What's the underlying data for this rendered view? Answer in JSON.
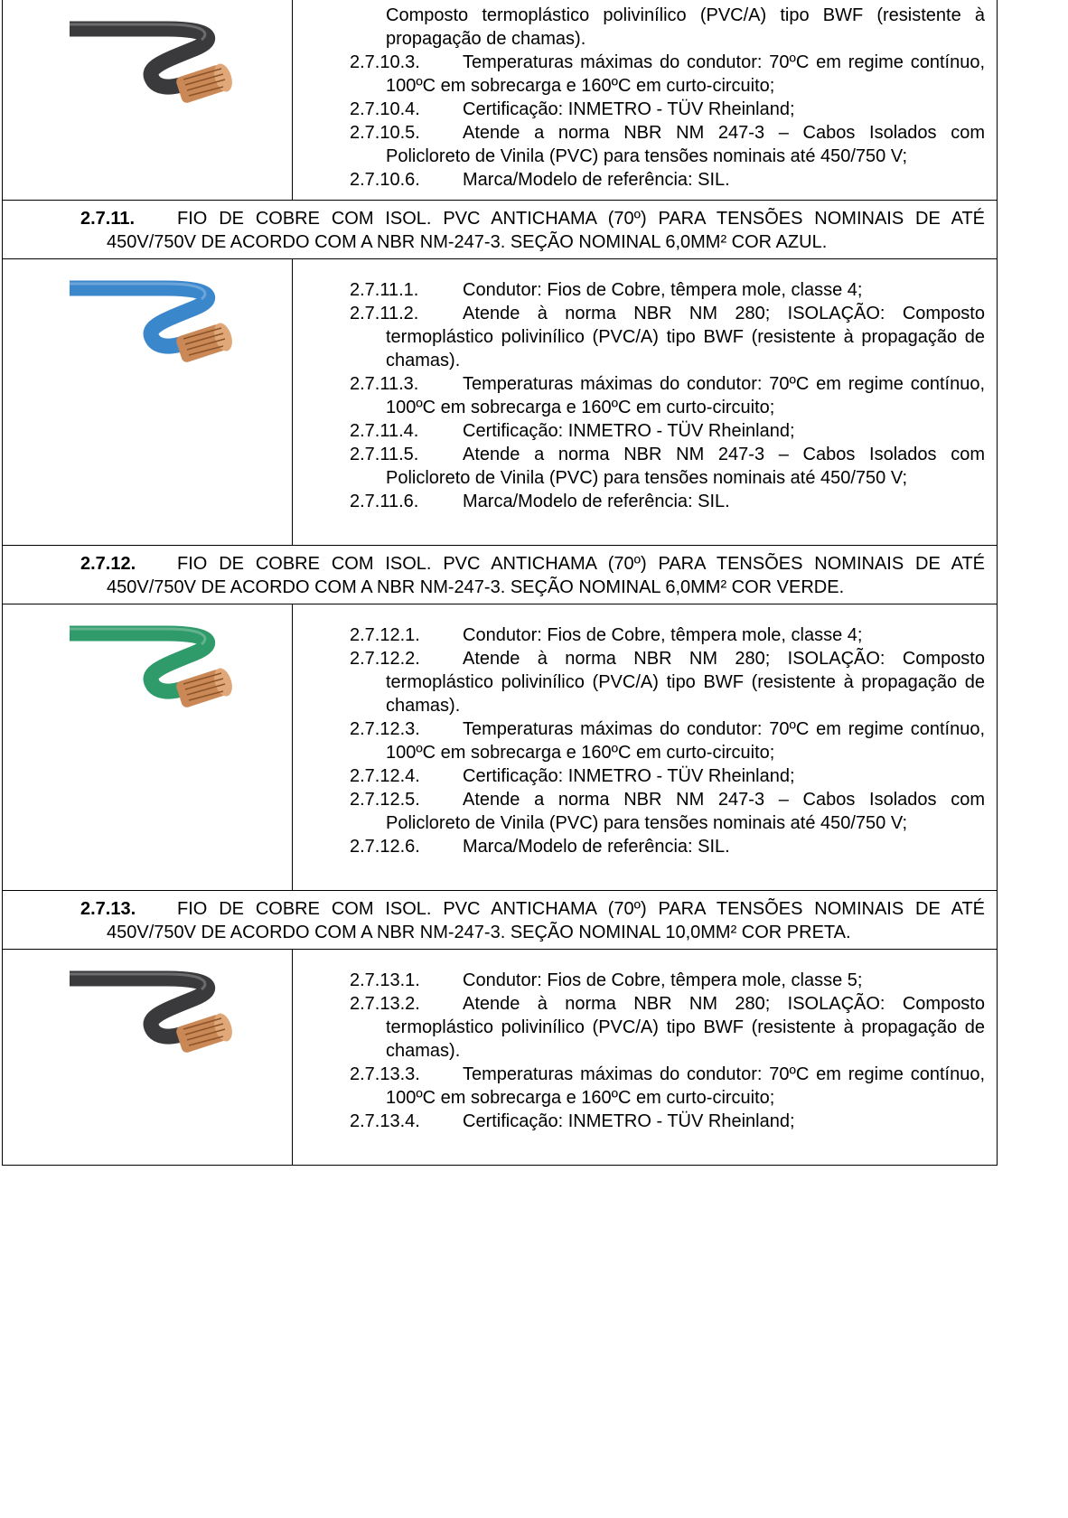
{
  "first_cell": {
    "continued_text": "Composto termoplástico polivinílico (PVC/A) tipo BWF (resistente à propagação de chamas).",
    "items": [
      {
        "number": "2.7.10.3.",
        "text": "Temperaturas máximas do condutor: 70ºC em regime contínuo, 100ºC em sobrecarga e 160ºC em curto-circuito;"
      },
      {
        "number": "2.7.10.4.",
        "text": "Certificação: INMETRO - TÜV Rheinland;"
      },
      {
        "number": "2.7.10.5.",
        "text": "Atende a norma NBR NM 247-3 – Cabos Isolados com Policloreto de Vinila (PVC) para tensões nominais até 450/750 V;"
      },
      {
        "number": "2.7.10.6.",
        "text": "Marca/Modelo de referência: SIL."
      }
    ]
  },
  "sections": [
    {
      "number": "2.7.11.",
      "title": "FIO DE COBRE COM ISOL. PVC ANTICHAMA (70º) PARA TENSÕES NOMINAIS DE ATÉ 450V/750V DE ACORDO COM A NBR NM-247-3. SEÇÃO NOMINAL 6,0MM² COR AZUL.",
      "items": [
        {
          "number": "2.7.11.1.",
          "text": "Condutor: Fios de Cobre, têmpera mole, classe 4;"
        },
        {
          "number": "2.7.11.2.",
          "text": "Atende à norma NBR NM 280; ISOLAÇÃO: Composto termoplástico polivinílico (PVC/A) tipo BWF (resistente à propagação de chamas)."
        },
        {
          "number": "2.7.11.3.",
          "text": "Temperaturas máximas do condutor: 70ºC em regime contínuo, 100ºC em sobrecarga e 160ºC em curto-circuito;"
        },
        {
          "number": "2.7.11.4.",
          "text": "Certificação: INMETRO - TÜV Rheinland;"
        },
        {
          "number": "2.7.11.5.",
          "text": "Atende a norma NBR NM 247-3 – Cabos Isolados com Policloreto de Vinila (PVC) para tensões nominais até 450/750 V;"
        },
        {
          "number": "2.7.11.6.",
          "text": "Marca/Modelo de referência: SIL."
        }
      ]
    },
    {
      "number": "2.7.12.",
      "title": "FIO DE COBRE COM ISOL. PVC ANTICHAMA (70º) PARA TENSÕES NOMINAIS DE ATÉ 450V/750V DE ACORDO COM A NBR NM-247-3. SEÇÃO NOMINAL 6,0MM² COR VERDE.",
      "items": [
        {
          "number": "2.7.12.1.",
          "text": "Condutor: Fios de Cobre, têmpera mole, classe 4;"
        },
        {
          "number": "2.7.12.2.",
          "text": "Atende à norma NBR NM 280; ISOLAÇÃO: Composto termoplástico polivinílico (PVC/A) tipo BWF (resistente à propagação de chamas)."
        },
        {
          "number": "2.7.12.3.",
          "text": "Temperaturas máximas do condutor: 70ºC em regime contínuo, 100ºC em sobrecarga e 160ºC em curto-circuito;"
        },
        {
          "number": "2.7.12.4.",
          "text": "Certificação: INMETRO - TÜV Rheinland;"
        },
        {
          "number": "2.7.12.5.",
          "text": "Atende a norma NBR NM 247-3 – Cabos Isolados com Policloreto de Vinila (PVC) para tensões nominais até 450/750 V;"
        },
        {
          "number": "2.7.12.6.",
          "text": "Marca/Modelo de referência: SIL."
        }
      ]
    },
    {
      "number": "2.7.13.",
      "title": "FIO DE COBRE COM ISOL. PVC ANTICHAMA (70º) PARA TENSÕES NOMINAIS DE ATÉ 450V/750V DE ACORDO COM A NBR NM-247-3. SEÇÃO NOMINAL 10,0MM² COR PRETA.",
      "items": [
        {
          "number": "2.7.13.1.",
          "text": "Condutor: Fios de Cobre, têmpera mole, classe 5;"
        },
        {
          "number": "2.7.13.2.",
          "text": "Atende à norma NBR NM 280; ISOLAÇÃO: Composto termoplástico polivinílico (PVC/A) tipo BWF (resistente à propagação de chamas)."
        },
        {
          "number": "2.7.13.3.",
          "text": "Temperaturas máximas do condutor: 70ºC em regime contínuo, 100ºC em sobrecarga e 160ºC em curto-circuito;"
        },
        {
          "number": "2.7.13.4.",
          "text": "Certificação: INMETRO - TÜV Rheinland;"
        }
      ]
    }
  ]
}
